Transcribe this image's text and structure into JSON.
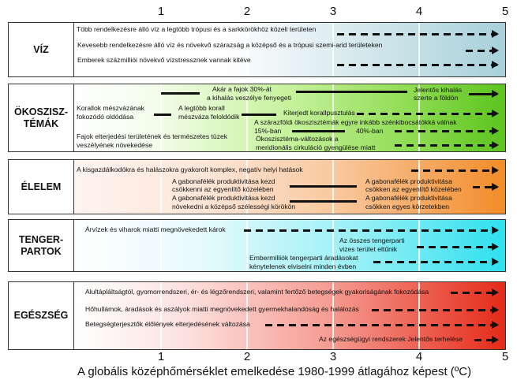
{
  "axis": {
    "ticks": [
      "1",
      "2",
      "3",
      "4",
      "5"
    ],
    "title": "A globális középhőmérséklet emelkedése 1980-1999 átlagához képest (ºC)"
  },
  "colors": {
    "viz": "#a8d0da",
    "okosz": "#5cc41e",
    "elelem": "#f28c28",
    "tenger": "#2ee0ee",
    "egeszseg": "#e52a18"
  },
  "panels": {
    "viz": {
      "label": "VÍZ",
      "texts": [
        "Több rendelkezésre álló víz a legtöbb trópusi és a sarkkörökhöz közeli területen",
        "Kevesebb rendelkezésre álló víz és növekvő szárazság a középső és a trópusi szemi-arid területeken",
        "Emberek százmilliói növekvő vízstressznek vannak kitéve"
      ],
      "segments": [
        {
          "from": 3.05,
          "to": 5,
          "style": "dashed",
          "arrow": true
        },
        {
          "from": 4.55,
          "to": 5,
          "style": "dashed",
          "arrow": true
        },
        {
          "from": 3.05,
          "to": 5,
          "style": "dashed",
          "arrow": true
        }
      ]
    },
    "okosz": {
      "label": "ÖKOSZISZ-\nTÉMÁK",
      "texts": [
        "Akár a fajok 30%-át",
        "a kihalás veszélye fenyegeti",
        "Jelentős kihalás",
        "szerte a földön",
        "Korallok mészvázának",
        "fokozódó oldódása",
        "A legtöbb korall",
        "mészváza feloldódik",
        "Kiterjedt korallpusztulás",
        "A szárazföldi ökoszisztémák egyre inkább szénkibocsátókká válnak",
        "15%-ban",
        "40%-ban",
        "Ökoszisztéma-változások a",
        "meridionális cirkuláció gyengülése miatt",
        "Fajok elterjedési területének és természetes tüzek",
        "veszélyének növekedése"
      ],
      "segments": [
        {
          "from": 1.0,
          "to": 1.45,
          "style": "solid",
          "arrow": false
        },
        {
          "from": 2.57,
          "to": 3.87,
          "style": "solid",
          "arrow": false
        },
        {
          "from": 4.58,
          "to": 5,
          "style": "solid",
          "arrow": true
        },
        {
          "from": 0.92,
          "to": 1.12,
          "style": "solid",
          "arrow": false
        },
        {
          "from": 1.94,
          "to": 2.34,
          "style": "solid",
          "arrow": false
        },
        {
          "from": 3.28,
          "to": 5,
          "style": "dashed",
          "arrow": true
        },
        {
          "from": 2.53,
          "to": 3.14,
          "style": "solid",
          "arrow": false
        },
        {
          "from": 3.72,
          "to": 5,
          "style": "dashed",
          "arrow": true
        },
        {
          "from": 3.72,
          "to": 5,
          "style": "dashed",
          "arrow": true
        }
      ]
    },
    "elelem": {
      "label": "ÉLELEM",
      "texts": [
        "A kisgazdálkodókra és halászokra gyakorolt komplex, negatív helyi hatások",
        "A gabonafélék produktivitása kezd",
        "csökkenni az egyenlítő közelében",
        "A gabonafélék produktivitása",
        "csökken az egyenlítő közelében",
        "A gabonafélék produktivitása kezd",
        "növekedni a középső szélességi körökön",
        "A gabonafélék produktivitása",
        "csökken egyes körzetekben"
      ],
      "segments": [
        {
          "from": 3.91,
          "to": 5,
          "style": "dashed",
          "arrow": true
        },
        {
          "from": 2.5,
          "to": 3.28,
          "style": "solid",
          "arrow": false
        },
        {
          "from": 4.63,
          "to": 5,
          "style": "dashed",
          "arrow": true
        },
        {
          "from": 2.5,
          "to": 3.28,
          "style": "solid",
          "arrow": false
        }
      ]
    },
    "tenger": {
      "label": "TENGER-\nPARTOK",
      "texts": [
        "Árvízek és viharok miatti megnövekedett károk",
        "Az összes tengerparti",
        "vizes terület eltűnik",
        "Embermilliók tengerparti áradásokat",
        "kénytelenek elviselni minden évben"
      ],
      "segments": [
        {
          "from": 1.97,
          "to": 5,
          "style": "dashed",
          "arrow": true
        },
        {
          "from": 3.98,
          "to": 5,
          "style": "dashed",
          "arrow": true
        },
        {
          "from": 3.47,
          "to": 5,
          "style": "dashed",
          "arrow": true
        }
      ]
    },
    "egeszseg": {
      "label": "EGÉSZSÉG",
      "texts": [
        "Alultápláltságtól, gyomorrendszeri, ér- és légzőrendszeri, valamint fertőző betegségek gyakoriságának fokozódása",
        "Hőhullámok, áradások és aszályok miatti megnövekedett gyermekhalandóság és halálozás",
        "Betegségterjesztők élőlények elterjedésének változása",
        "Az egészségügyi rendszerek Jelentős terhelése"
      ],
      "segments": [
        {
          "from": 4.37,
          "to": 5,
          "style": "dashed",
          "arrow": true
        },
        {
          "from": 3.45,
          "to": 5,
          "style": "dashed",
          "arrow": true
        },
        {
          "from": 2.22,
          "to": 5,
          "style": "dashed",
          "arrow": true
        },
        {
          "from": 4.65,
          "to": 5,
          "style": "dashed",
          "arrow": true
        }
      ]
    }
  }
}
